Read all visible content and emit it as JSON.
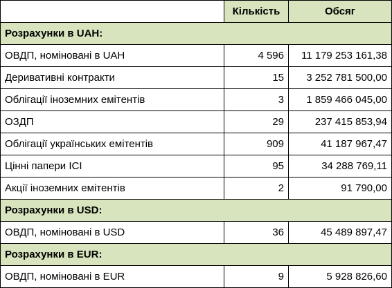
{
  "colors": {
    "header_bg": "#d7e4bd",
    "section_bg": "#d7e4bd",
    "border": "#000000"
  },
  "header": {
    "name": "",
    "quantity": "Кількість",
    "volume": "Обсяг"
  },
  "sections": [
    {
      "title": "Розрахунки в UAH:",
      "rows": [
        {
          "name": "ОВДП, номіновані в UAH",
          "quantity": "4 596",
          "volume": "11 179 253 161,38"
        },
        {
          "name": "Деривативні контракти",
          "quantity": "15",
          "volume": "3 252 781 500,00"
        },
        {
          "name": "Облігації іноземних емітентів",
          "quantity": "3",
          "volume": "1 859 466 045,00"
        },
        {
          "name": "ОЗДП",
          "quantity": "29",
          "volume": "237 415 853,94"
        },
        {
          "name": "Облігації українських емітентів",
          "quantity": "909",
          "volume": "41 187 967,47"
        },
        {
          "name": "Цінні папери ІСІ",
          "quantity": "95",
          "volume": "34 288 769,11"
        },
        {
          "name": "Акції іноземних емітентів",
          "quantity": "2",
          "volume": "91 790,00"
        }
      ]
    },
    {
      "title": "Розрахунки в USD:",
      "rows": [
        {
          "name": "ОВДП, номіновані в USD",
          "quantity": "36",
          "volume": "45 489 897,47"
        }
      ]
    },
    {
      "title": "Розрахунки в EUR:",
      "rows": [
        {
          "name": "ОВДП, номіновані в EUR",
          "quantity": "9",
          "volume": "5 928 826,60"
        }
      ]
    }
  ]
}
